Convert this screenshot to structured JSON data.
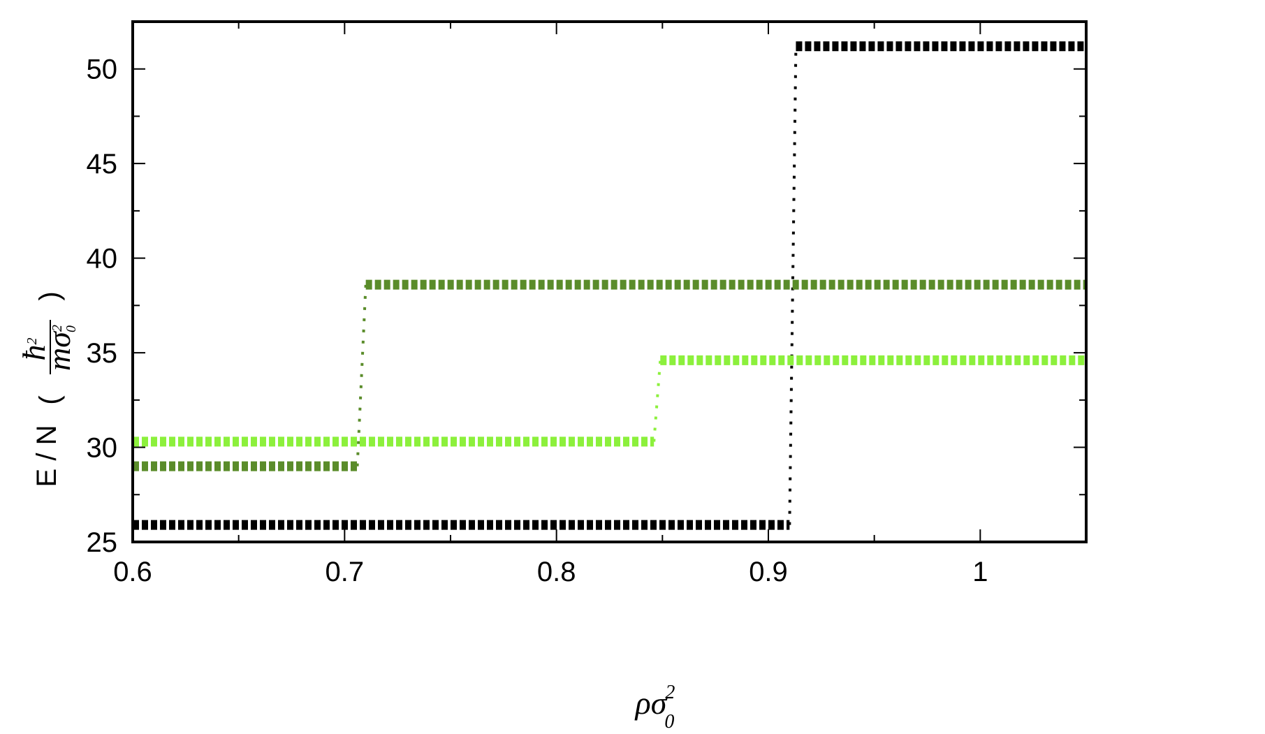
{
  "chart_data": {
    "type": "line",
    "title": "",
    "xlabel": {
      "base": "ρσ",
      "sub": "0",
      "sup": "2"
    },
    "ylabel": {
      "prefix": "E / N",
      "numerator": "ħ",
      "numerator_sup": "2",
      "denominator": "mσ",
      "denominator_sub": "0",
      "denominator_sup": "2"
    },
    "xlim": [
      0.6,
      1.05
    ],
    "ylim": [
      25,
      52.5
    ],
    "xticks": [
      0.6,
      0.7,
      0.8,
      0.9,
      1
    ],
    "xtick_labels": [
      "0.6",
      "0.7",
      "0.8",
      "0.9",
      "1"
    ],
    "yticks": [
      25,
      30,
      35,
      40,
      45,
      50
    ],
    "ytick_labels": [
      "25",
      "30",
      "35",
      "40",
      "45",
      "50"
    ],
    "grid": false,
    "series": [
      {
        "color": "#000000",
        "segments": [
          {
            "x": [
              0.6,
              0.91
            ],
            "y": [
              25.9,
              25.9
            ]
          },
          {
            "x": [
              0.913,
              1.05
            ],
            "y": [
              51.2,
              51.2
            ]
          }
        ],
        "jump": {
          "x": [
            0.91,
            0.913
          ],
          "y": [
            25.9,
            51.2
          ]
        }
      },
      {
        "color": "#5a8c2a",
        "segments": [
          {
            "x": [
              0.6,
              0.706
            ],
            "y": [
              29.0,
              29.0
            ]
          },
          {
            "x": [
              0.71,
              1.05
            ],
            "y": [
              38.6,
              38.6
            ]
          }
        ],
        "jump": {
          "x": [
            0.706,
            0.71
          ],
          "y": [
            29.0,
            38.6
          ]
        }
      },
      {
        "color": "#8cf03c",
        "segments": [
          {
            "x": [
              0.6,
              0.846
            ],
            "y": [
              30.3,
              30.3
            ]
          },
          {
            "x": [
              0.849,
              1.05
            ],
            "y": [
              34.6,
              34.6
            ]
          }
        ],
        "jump": {
          "x": [
            0.846,
            0.849
          ],
          "y": [
            30.3,
            34.6
          ]
        }
      }
    ]
  }
}
